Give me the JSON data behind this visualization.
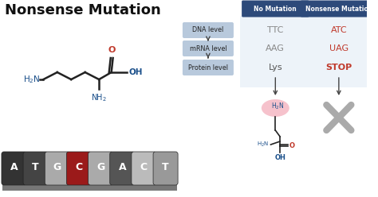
{
  "title": "Nonsense Mutation",
  "title_fontsize": 13,
  "title_color": "#111111",
  "background_color": "#ffffff",
  "table_header_no_mutation": "No Mutation",
  "table_header_nonsense": "Nonsense Mutation",
  "table_header_bg": "#2d4a7a",
  "table_header_color": "#ffffff",
  "levels": [
    "DNA level",
    "mRNA level",
    "Protein level"
  ],
  "level_bg": "#b8c9dc",
  "no_mutation_values": [
    "TTC",
    "AAG",
    "Lys"
  ],
  "nonsense_values": [
    "ATC",
    "UAG",
    "STOP"
  ],
  "nonsense_colors": [
    "#c0392b",
    "#c0392b",
    "#c0392b"
  ],
  "no_mutation_colors": [
    "#888888",
    "#888888",
    "#555555"
  ],
  "table_bg": "#dce8f5",
  "nucleotide_letters": [
    "A",
    "T",
    "G",
    "C",
    "G",
    "A",
    "C",
    "T"
  ],
  "nuc_colors": [
    "#333333",
    "#444444",
    "#aaaaaa",
    "#9b1a1a",
    "#aaaaaa",
    "#555555",
    "#bbbbbb",
    "#999999"
  ],
  "nuc_dark": [
    "#2a2a2a",
    "#3a3a3a",
    "#999999",
    "#8b0000",
    "#999999",
    "#444444",
    "#aaaaaa",
    "#888888"
  ],
  "base_platform_color": "#777777",
  "x_mark_color": "#aaaaaa",
  "amino_acid_circle_color": "#f5b8c4",
  "arrow_color": "#444444",
  "chain_color": "#222222",
  "nh2_color": "#1a4f8a",
  "oh_color": "#1a4f8a",
  "carbonyl_o_color": "#c0392b",
  "lys_nh2_color": "#1a4f8a"
}
